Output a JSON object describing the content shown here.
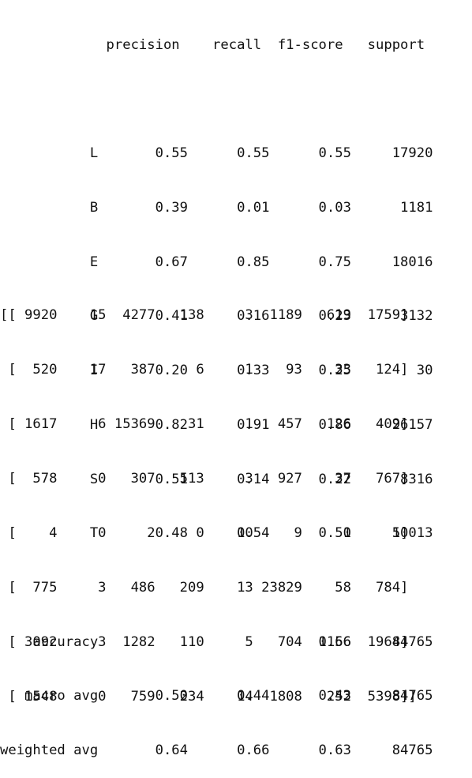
{
  "classification_report": {
    "header": "             precision    recall  f1-score   support",
    "class_rows": [
      "           L       0.55      0.55      0.55     17920",
      "           B       0.39      0.01      0.03      1181",
      "           E       0.67      0.85      0.75     18016",
      "           G       0.41      0.16      0.23      3132",
      "           I       0.20      0.33      0.25        30",
      "           H       0.82      0.91      0.86     26157",
      "           S       0.51      0.14      0.22      8316",
      "           T       0.48      0.54      0.51     10013"
    ],
    "summary_rows": [
      "    accuracy                           0.66     84765",
      "   macro avg       0.50      0.44      0.43     84765",
      "weighted avg       0.64      0.66      0.63     84765"
    ]
  },
  "confusion_matrix": {
    "rows": [
      "[[ 9920    15  4277   138     3  1189   619  1759]",
      " [  520    17   387     6     1    93    33   124]",
      " [ 1617     6 15369    31     1   457   126   409]",
      " [  578     0   307   513     3   927    37   767]",
      " [    4     0     2     0    10     9     0     5]",
      " [  775     3   486   209    13 23829    58   784]",
      " [ 3092     3  1282   110     5   704  1156  1964]",
      " [ 1548     0   759   234    14  1808   252  5398]]"
    ]
  }
}
